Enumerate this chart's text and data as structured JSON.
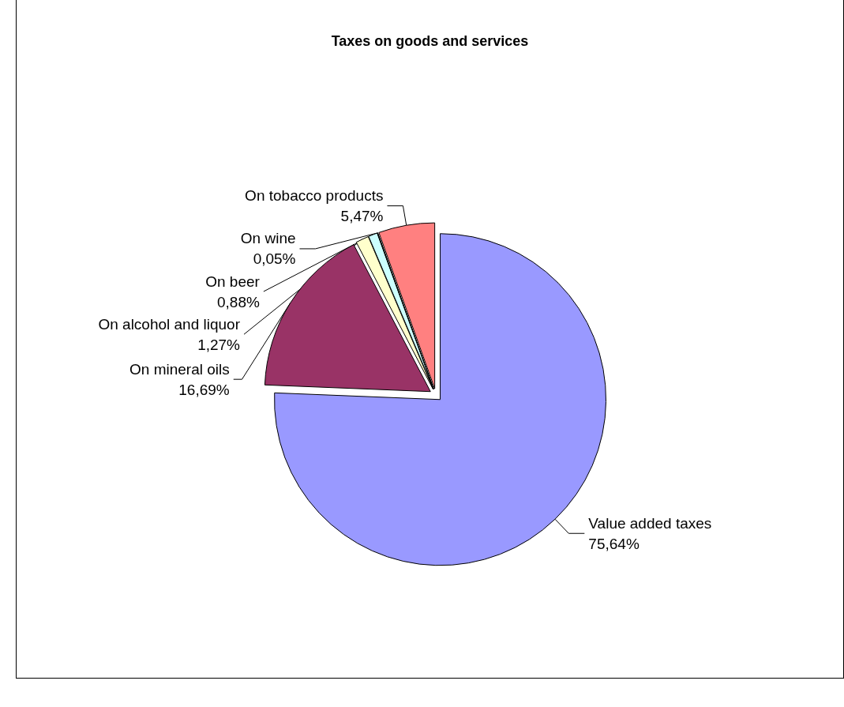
{
  "chart_data": {
    "type": "pie",
    "title": "Taxes on goods and services",
    "categories": [
      "Value added taxes",
      "On mineral oils",
      "On alcohol and liquor",
      "On beer",
      "On wine",
      "On tobacco products"
    ],
    "values": [
      75.64,
      16.69,
      1.27,
      0.88,
      0.05,
      5.47
    ],
    "value_labels": [
      "75,64%",
      "16,69%",
      "1,27%",
      "0,88%",
      "0,05%",
      "5,47%"
    ],
    "colors": [
      "#9999ff",
      "#993366",
      "#ffffcc",
      "#ccffff",
      "#000000",
      "#ff8080"
    ]
  }
}
